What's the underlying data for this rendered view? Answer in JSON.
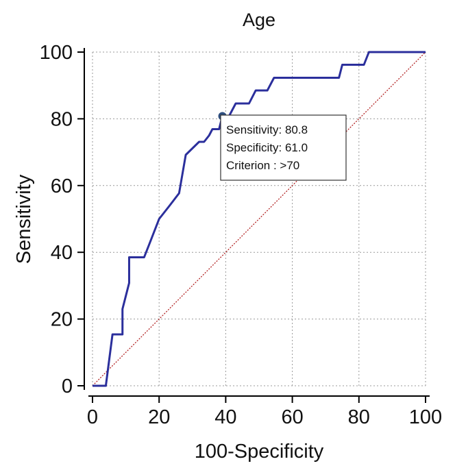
{
  "chart_data": {
    "type": "line",
    "title": "Age",
    "x_label": "100-Specificity",
    "y_label": "Sensitivity",
    "x": [
      0,
      4,
      6,
      9,
      9,
      11,
      11,
      15.5,
      17,
      20,
      23,
      26,
      28,
      32,
      33.5,
      35,
      36,
      38,
      39,
      41,
      43,
      47,
      49,
      52.5,
      54.5,
      74,
      75,
      81.5,
      83,
      100
    ],
    "values": [
      0,
      0,
      15.4,
      15.4,
      23,
      30.8,
      38.5,
      38.5,
      42.3,
      50,
      53.8,
      57.7,
      69.2,
      73.1,
      73.1,
      75,
      76.9,
      76.9,
      80.8,
      80.8,
      84.6,
      84.6,
      88.5,
      88.5,
      92.3,
      92.3,
      96.2,
      96.2,
      100,
      100
    ],
    "color": "#2b2f9c",
    "reference_line": {
      "x": [
        0,
        100
      ],
      "values": [
        0,
        100
      ],
      "color": "#b22222"
    },
    "marker": {
      "x": 39.0,
      "y": 80.8,
      "color": "#2f4f7f"
    },
    "annotation": [
      "Sensitivity: 80.8",
      "Specificity: 61.0",
      "Criterion : >70"
    ],
    "xlim": [
      0,
      100
    ],
    "ylim": [
      0,
      100
    ],
    "xticks": [
      0,
      20,
      40,
      60,
      80,
      100
    ],
    "yticks": [
      0,
      20,
      40,
      60,
      80,
      100
    ],
    "grid": true
  }
}
